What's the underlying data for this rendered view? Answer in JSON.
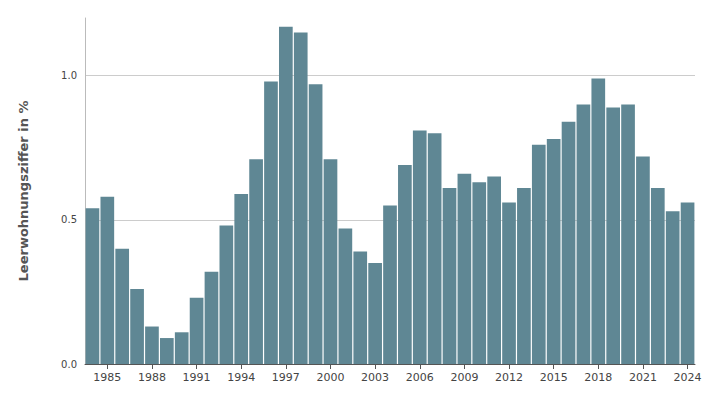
{
  "chart_data": {
    "type": "bar",
    "y_label": "Leerwohnungsziffer in %",
    "categories": [
      null,
      "1985",
      null,
      null,
      "1988",
      null,
      null,
      "1991",
      null,
      null,
      "1994",
      null,
      null,
      "1997",
      null,
      null,
      "2000",
      null,
      null,
      "2003",
      null,
      null,
      "2006",
      null,
      null,
      "2009",
      null,
      null,
      "2012",
      null,
      null,
      "2015",
      null,
      null,
      "2018",
      null,
      null,
      "2021",
      null,
      null,
      "2024"
    ],
    "values": [
      0.54,
      0.58,
      0.4,
      0.26,
      0.13,
      0.09,
      0.11,
      0.23,
      0.32,
      0.48,
      0.59,
      0.71,
      0.98,
      1.17,
      1.15,
      0.97,
      0.71,
      0.47,
      0.39,
      0.35,
      0.55,
      0.69,
      0.81,
      0.8,
      0.61,
      0.66,
      0.63,
      0.65,
      0.56,
      0.61,
      0.76,
      0.78,
      0.84,
      0.9,
      0.99,
      0.89,
      0.9,
      0.72,
      0.61,
      0.53,
      0.56
    ],
    "color": "#5f8794",
    "ylim": [
      0,
      1.2
    ],
    "yticks": [
      {
        "value": 0,
        "label": "0.0"
      },
      0.5,
      {
        "value": 1,
        "label": "1.0"
      }
    ],
    "grid": true
  }
}
